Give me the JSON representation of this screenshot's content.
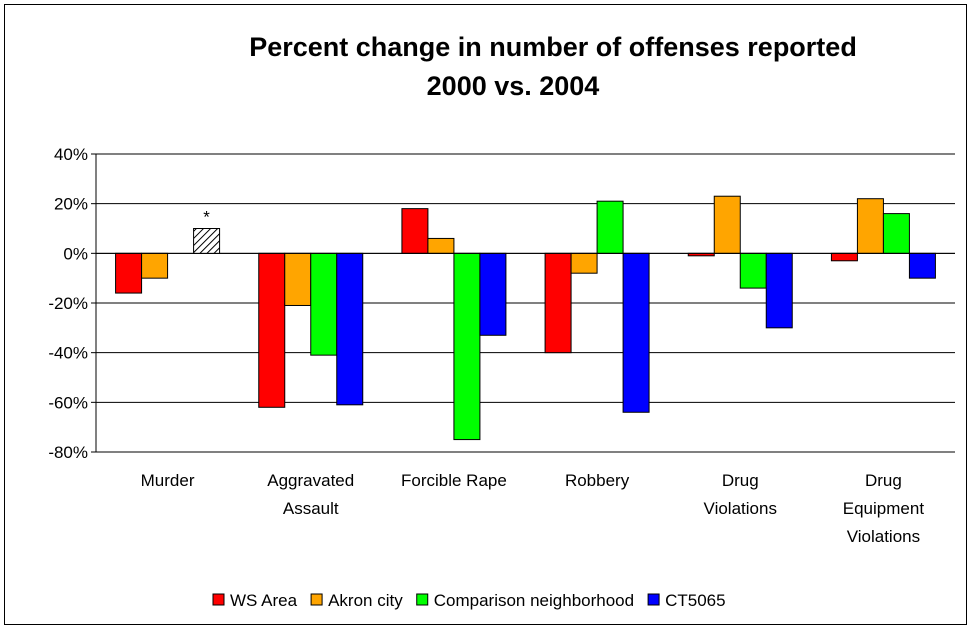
{
  "chart_data": {
    "type": "bar",
    "title": [
      "Percent change in number of offenses reported",
      "2000 vs. 2004"
    ],
    "categories": [
      [
        "Murder"
      ],
      [
        "Aggravated",
        "Assault"
      ],
      [
        "Forcible Rape"
      ],
      [
        "Robbery"
      ],
      [
        "Drug",
        "Violations"
      ],
      [
        "Drug",
        "Equipment",
        "Violations"
      ]
    ],
    "series": [
      {
        "name": "WS Area",
        "color": "#ff0000",
        "values": [
          -16,
          -62,
          18,
          -40,
          -1,
          -3
        ]
      },
      {
        "name": "Akron city",
        "color": "#ffa500",
        "values": [
          -10,
          -21,
          6,
          -8,
          23,
          22
        ]
      },
      {
        "name": "Comparison neighborhood",
        "color": "#00ff00",
        "values": [
          null,
          -41,
          -75,
          21,
          -14,
          16
        ]
      },
      {
        "name": "CT5065",
        "color": "#0000ff",
        "values": [
          null,
          -61,
          -33,
          -64,
          -30,
          -10
        ]
      }
    ],
    "yticks": [
      "40%",
      "20%",
      "0%",
      "-20%",
      "-40%",
      "-60%",
      "-80%"
    ],
    "ylim": [
      -80,
      40
    ],
    "grid": true,
    "legend": "bottom",
    "annotation": {
      "text": "*",
      "category": 0,
      "value": 10,
      "pattern": "hatched"
    }
  }
}
